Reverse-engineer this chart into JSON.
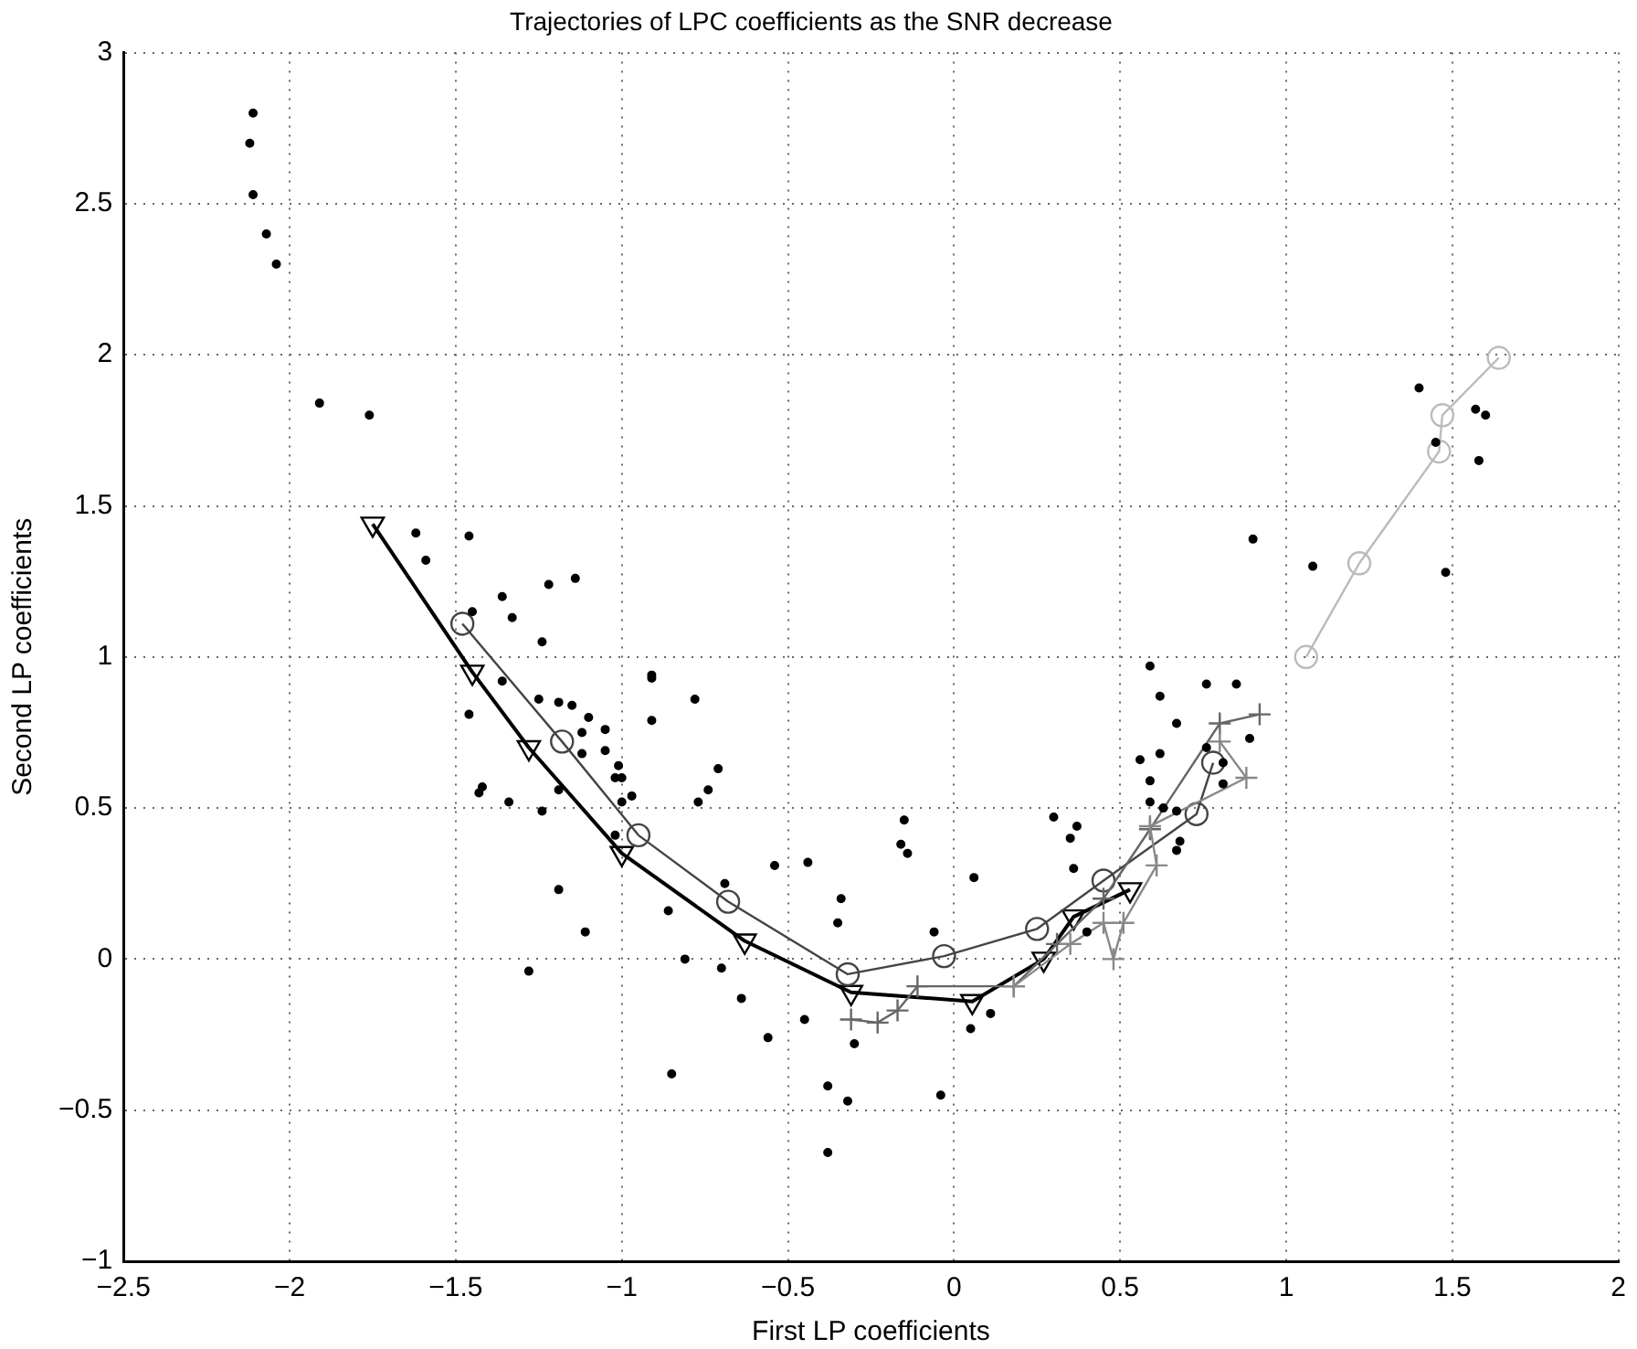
{
  "chart_data": {
    "type": "scatter",
    "title": "Trajectories of LPC coefficients as the SNR decrease",
    "xlabel": "First LP coefficients",
    "ylabel": "Second LP coefficients",
    "xlim": [
      -2.5,
      2
    ],
    "xticks": [
      -2.5,
      -2,
      -1.5,
      -1,
      -0.5,
      0,
      0.5,
      1,
      1.5,
      2
    ],
    "ylim": [
      -1,
      3
    ],
    "yticks": [
      -1,
      -0.5,
      0,
      0.5,
      1,
      1.5,
      2,
      2.5,
      3
    ],
    "grid": true,
    "legend": false,
    "series": [
      {
        "marker": "circle",
        "color": "#000000",
        "x": [
          -2.11,
          -2.12,
          -2.11,
          -2.07,
          -2.04,
          -1.91,
          -1.76,
          -1.62,
          -1.59,
          -1.46,
          -1.45,
          -1.36,
          -1.33,
          -1.22,
          -1.14,
          -1.24,
          -0.91,
          -1.46,
          -1.42,
          -1.43,
          -1.36,
          -1.34,
          -1.25,
          -1.24,
          -1.19,
          -1.15,
          -1.19,
          -1.12,
          -1.1,
          -1.12,
          -1.05,
          -1.05,
          -1.01,
          -1.02,
          -1.0,
          -1.0,
          -0.97,
          -1.02,
          -1.19,
          -1.11,
          -1.28,
          -0.91,
          -0.91,
          -0.78,
          -0.71,
          -0.74,
          -0.77,
          -0.69,
          -0.86,
          -0.81,
          -0.7,
          -0.64,
          -0.56,
          -0.85,
          -0.54,
          -0.45,
          -0.44,
          -0.38,
          -0.32,
          -0.38,
          -0.3,
          -0.34,
          -0.35,
          -0.15,
          -0.16,
          -0.14,
          -0.06,
          -0.04,
          0.06,
          0.05,
          0.11,
          0.3,
          0.35,
          0.37,
          0.36,
          0.4,
          0.56,
          0.59,
          0.62,
          0.67,
          0.76,
          0.85,
          0.59,
          0.62,
          0.59,
          0.63,
          0.67,
          0.68,
          0.67,
          0.76,
          0.81,
          0.81,
          0.89,
          0.9,
          1.08,
          1.4,
          1.57,
          1.6,
          1.58,
          1.48,
          1.45
        ],
        "values": [
          2.8,
          2.7,
          2.53,
          2.4,
          2.3,
          1.84,
          1.8,
          1.41,
          1.32,
          1.4,
          1.15,
          1.2,
          1.13,
          1.24,
          1.26,
          1.05,
          0.94,
          0.81,
          0.57,
          0.55,
          0.92,
          0.52,
          0.86,
          0.49,
          0.85,
          0.84,
          0.56,
          0.75,
          0.8,
          0.68,
          0.76,
          0.69,
          0.64,
          0.6,
          0.6,
          0.52,
          0.54,
          0.41,
          0.23,
          0.09,
          -0.04,
          0.93,
          0.79,
          0.86,
          0.63,
          0.56,
          0.52,
          0.25,
          0.16,
          0.0,
          -0.03,
          -0.13,
          -0.26,
          -0.38,
          0.31,
          -0.2,
          0.32,
          -0.42,
          -0.47,
          -0.64,
          -0.28,
          0.2,
          0.12,
          0.46,
          0.38,
          0.35,
          0.09,
          -0.45,
          0.27,
          -0.23,
          -0.18,
          0.47,
          0.4,
          0.44,
          0.3,
          0.09,
          0.66,
          0.97,
          0.87,
          0.78,
          0.91,
          0.91,
          0.59,
          0.68,
          0.52,
          0.5,
          0.49,
          0.39,
          0.36,
          0.7,
          0.65,
          0.58,
          0.73,
          1.39,
          1.3,
          1.89,
          1.82,
          1.8,
          1.65,
          1.28,
          1.71
        ]
      },
      {
        "type": "line",
        "marker": "circle",
        "color": "#bbbbbb",
        "x": [
          1.06,
          1.22,
          1.46,
          1.47,
          1.64
        ],
        "values": [
          1.0,
          1.31,
          1.68,
          1.8,
          1.99
        ]
      },
      {
        "type": "line",
        "marker": "cross",
        "color": "#888888",
        "x": [
          0.18,
          0.35,
          0.45,
          0.48,
          0.51,
          0.61,
          0.59,
          0.88,
          0.8
        ],
        "values": [
          -0.09,
          0.05,
          0.12,
          0.0,
          0.12,
          0.31,
          0.44,
          0.6,
          0.72
        ]
      },
      {
        "type": "line",
        "marker": "cross",
        "color": "#666666",
        "x": [
          -0.31,
          -0.23,
          -0.17,
          -0.11,
          0.18,
          0.31,
          0.45,
          0.59,
          0.8,
          0.92
        ],
        "values": [
          -0.2,
          -0.21,
          -0.17,
          -0.09,
          -0.09,
          0.05,
          0.2,
          0.43,
          0.78,
          0.81
        ]
      },
      {
        "type": "line",
        "marker": "circle",
        "color": "#444444",
        "x": [
          -1.48,
          -1.18,
          -0.95,
          -0.68,
          -0.32,
          -0.03,
          0.25,
          0.45,
          0.73,
          0.78
        ],
        "values": [
          1.11,
          0.72,
          0.41,
          0.19,
          -0.05,
          0.01,
          0.1,
          0.26,
          0.48,
          0.65
        ]
      },
      {
        "type": "line",
        "marker": "triangle",
        "color": "#000000",
        "x": [
          -1.75,
          -1.45,
          -1.28,
          -1.0,
          -0.63,
          -0.31,
          0.055,
          0.27,
          0.36,
          0.53
        ],
        "values": [
          1.44,
          0.95,
          0.7,
          0.35,
          0.06,
          -0.11,
          -0.14,
          0.0,
          0.14,
          0.23
        ]
      }
    ]
  }
}
